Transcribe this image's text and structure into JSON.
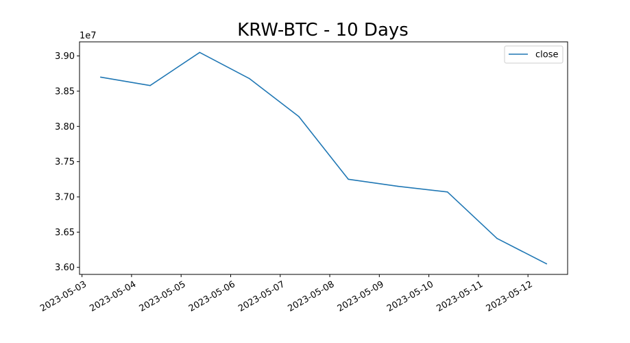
{
  "chart_data": {
    "type": "line",
    "title": "KRW-BTC - 10 Days",
    "xlabel": "",
    "ylabel": "",
    "y_offset_label": "1e7",
    "y_scale_factor": 10000000,
    "x_tick_labels": [
      "2023-05-03",
      "2023-05-04",
      "2023-05-05",
      "2023-05-06",
      "2023-05-07",
      "2023-05-08",
      "2023-05-09",
      "2023-05-10",
      "2023-05-11",
      "2023-05-12"
    ],
    "y_tick_labels": [
      "3.60",
      "3.65",
      "3.70",
      "3.75",
      "3.80",
      "3.85",
      "3.90"
    ],
    "xlim": [
      "2023-05-02T22:48",
      "2023-05-12T19:12"
    ],
    "ylim": [
      35900000,
      39200000
    ],
    "grid": false,
    "legend_position": "top-right",
    "series": [
      {
        "name": "close",
        "color": "#1f77b4",
        "x": [
          "2023-05-03T09:00",
          "2023-05-04T09:00",
          "2023-05-05T09:00",
          "2023-05-06T09:00",
          "2023-05-07T09:00",
          "2023-05-08T09:00",
          "2023-05-09T09:00",
          "2023-05-10T09:00",
          "2023-05-11T09:00",
          "2023-05-12T09:00"
        ],
        "values": [
          38700000,
          38580000,
          39050000,
          38680000,
          38140000,
          37250000,
          37150000,
          37070000,
          36410000,
          36050000
        ]
      }
    ]
  }
}
